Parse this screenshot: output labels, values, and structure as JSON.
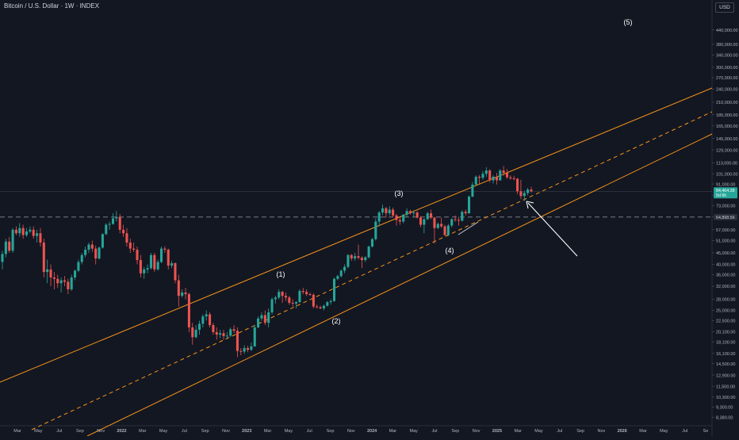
{
  "header": {
    "title": "Bitcoin / U.S. Dollar · 1W · INDEX",
    "currency": "USD"
  },
  "colors": {
    "background": "#131722",
    "up": "#26a69a",
    "down": "#ef5350",
    "channel": "#f7931a",
    "axis_text": "#b2b5be",
    "annotation": "#ffffff"
  },
  "chart_data": {
    "type": "candlestick",
    "title": "Bitcoin / U.S. Dollar · 1W · INDEX",
    "y_scale": "log",
    "ylim": [
      8000,
      560000
    ],
    "grid": false,
    "legend": "none",
    "y_ticks": [
      "440,000.00",
      "380,000.00",
      "340,000.00",
      "300,000.00",
      "270,000.00",
      "240,000.00",
      "210,000.00",
      "185,000.00",
      "165,000.00",
      "145,000.00",
      "129,000.00",
      "113,000.00",
      "101,000.00",
      "91,000.00",
      "81,000.00",
      "73,000.00",
      "65,000.00",
      "57,000.00",
      "51,000.00",
      "45,000.00",
      "40,000.00",
      "36,000.00",
      "32,000.00",
      "28,000.00",
      "25,000.00",
      "22,500.00",
      "20,100.00",
      "18,100.00",
      "16,100.00",
      "14,500.00",
      "12,900.00",
      "11,500.00",
      "10,300.00",
      "9,300.00",
      "8,380.00"
    ],
    "x_ticks": [
      "Mar",
      "May",
      "Jul",
      "Sep",
      "Nov",
      "2022",
      "Mar",
      "May",
      "Jul",
      "Sep",
      "Nov",
      "2023",
      "Mar",
      "May",
      "Jul",
      "Sep",
      "Nov",
      "2024",
      "Mar",
      "May",
      "Jul",
      "Sep",
      "Nov",
      "2025",
      "Mar",
      "May",
      "Jul",
      "Sep",
      "Nov",
      "2026",
      "Mar",
      "May",
      "Jul",
      "Se"
    ],
    "price_labels": {
      "last_price": "84,464.38",
      "countdown": "5d 6h",
      "horizontal_level": "64,898.56"
    },
    "wave_labels": [
      "(1)",
      "(2)",
      "(3)",
      "(4)",
      "(5)"
    ],
    "candles": [
      {
        "o": 41000,
        "h": 46000,
        "l": 38000,
        "c": 44500
      },
      {
        "o": 44500,
        "h": 52000,
        "l": 43000,
        "c": 50500
      },
      {
        "o": 50500,
        "h": 53000,
        "l": 45000,
        "c": 46000
      },
      {
        "o": 46000,
        "h": 58000,
        "l": 45000,
        "c": 57000
      },
      {
        "o": 57000,
        "h": 59000,
        "l": 54000,
        "c": 55000
      },
      {
        "o": 55000,
        "h": 61000,
        "l": 53000,
        "c": 58000
      },
      {
        "o": 58000,
        "h": 60000,
        "l": 52000,
        "c": 54000
      },
      {
        "o": 54000,
        "h": 58000,
        "l": 53000,
        "c": 56000
      },
      {
        "o": 56000,
        "h": 59000,
        "l": 55000,
        "c": 57000
      },
      {
        "o": 57000,
        "h": 59000,
        "l": 52000,
        "c": 53500
      },
      {
        "o": 53500,
        "h": 57000,
        "l": 50000,
        "c": 55000
      },
      {
        "o": 55000,
        "h": 58000,
        "l": 48000,
        "c": 50000
      },
      {
        "o": 50000,
        "h": 52000,
        "l": 35000,
        "c": 37000
      },
      {
        "o": 37000,
        "h": 42000,
        "l": 33000,
        "c": 38000
      },
      {
        "o": 38000,
        "h": 40000,
        "l": 32000,
        "c": 35000
      },
      {
        "o": 35000,
        "h": 37000,
        "l": 31000,
        "c": 34500
      },
      {
        "o": 34500,
        "h": 36000,
        "l": 31500,
        "c": 33000
      },
      {
        "o": 33000,
        "h": 35000,
        "l": 30000,
        "c": 34000
      },
      {
        "o": 34000,
        "h": 35500,
        "l": 32000,
        "c": 33500
      },
      {
        "o": 33500,
        "h": 34500,
        "l": 29500,
        "c": 31000
      },
      {
        "o": 31000,
        "h": 36000,
        "l": 30500,
        "c": 35000
      },
      {
        "o": 35000,
        "h": 38000,
        "l": 34000,
        "c": 37500
      },
      {
        "o": 37500,
        "h": 42000,
        "l": 37000,
        "c": 41000
      },
      {
        "o": 41000,
        "h": 45000,
        "l": 40000,
        "c": 44000
      },
      {
        "o": 44000,
        "h": 48000,
        "l": 43000,
        "c": 46500
      },
      {
        "o": 46500,
        "h": 50000,
        "l": 45000,
        "c": 49000
      },
      {
        "o": 49000,
        "h": 51000,
        "l": 45500,
        "c": 47000
      },
      {
        "o": 47000,
        "h": 48500,
        "l": 40000,
        "c": 42500
      },
      {
        "o": 42500,
        "h": 48000,
        "l": 42000,
        "c": 47500
      },
      {
        "o": 47500,
        "h": 55000,
        "l": 47000,
        "c": 54500
      },
      {
        "o": 54500,
        "h": 61000,
        "l": 54000,
        "c": 60000
      },
      {
        "o": 60000,
        "h": 62000,
        "l": 57000,
        "c": 60500
      },
      {
        "o": 60500,
        "h": 67500,
        "l": 60000,
        "c": 64000
      },
      {
        "o": 64000,
        "h": 69000,
        "l": 62000,
        "c": 65000
      },
      {
        "o": 65000,
        "h": 67000,
        "l": 55000,
        "c": 57000
      },
      {
        "o": 57000,
        "h": 60000,
        "l": 53000,
        "c": 55000
      },
      {
        "o": 55000,
        "h": 58000,
        "l": 48000,
        "c": 50000
      },
      {
        "o": 50000,
        "h": 52000,
        "l": 45000,
        "c": 47000
      },
      {
        "o": 47000,
        "h": 50000,
        "l": 45500,
        "c": 46500
      },
      {
        "o": 46500,
        "h": 48000,
        "l": 40000,
        "c": 41800
      },
      {
        "o": 41800,
        "h": 44000,
        "l": 35000,
        "c": 36500
      },
      {
        "o": 36500,
        "h": 39000,
        "l": 34500,
        "c": 38000
      },
      {
        "o": 38000,
        "h": 40000,
        "l": 36500,
        "c": 38500
      },
      {
        "o": 38500,
        "h": 45000,
        "l": 38000,
        "c": 44000
      },
      {
        "o": 44000,
        "h": 45000,
        "l": 37000,
        "c": 38000
      },
      {
        "o": 38000,
        "h": 42000,
        "l": 37500,
        "c": 41000
      },
      {
        "o": 41000,
        "h": 48000,
        "l": 40500,
        "c": 47000
      },
      {
        "o": 47000,
        "h": 48200,
        "l": 45000,
        "c": 46500
      },
      {
        "o": 46500,
        "h": 47000,
        "l": 38000,
        "c": 39500
      },
      {
        "o": 39500,
        "h": 41500,
        "l": 38500,
        "c": 40500
      },
      {
        "o": 40500,
        "h": 40800,
        "l": 33000,
        "c": 34000
      },
      {
        "o": 34000,
        "h": 36000,
        "l": 26000,
        "c": 29000
      },
      {
        "o": 29000,
        "h": 31000,
        "l": 28500,
        "c": 30000
      },
      {
        "o": 30000,
        "h": 31500,
        "l": 28000,
        "c": 29500
      },
      {
        "o": 29500,
        "h": 30000,
        "l": 20000,
        "c": 21000
      },
      {
        "o": 21000,
        "h": 22000,
        "l": 17600,
        "c": 19000
      },
      {
        "o": 19000,
        "h": 21500,
        "l": 18800,
        "c": 20500
      },
      {
        "o": 20500,
        "h": 22500,
        "l": 19500,
        "c": 21800
      },
      {
        "o": 21800,
        "h": 24000,
        "l": 21000,
        "c": 23500
      },
      {
        "o": 23500,
        "h": 25000,
        "l": 22500,
        "c": 24000
      },
      {
        "o": 24000,
        "h": 24500,
        "l": 21000,
        "c": 21500
      },
      {
        "o": 21500,
        "h": 22000,
        "l": 19500,
        "c": 20000
      },
      {
        "o": 20000,
        "h": 21000,
        "l": 18500,
        "c": 19500
      },
      {
        "o": 19500,
        "h": 20500,
        "l": 18800,
        "c": 19800
      },
      {
        "o": 19800,
        "h": 20500,
        "l": 18500,
        "c": 19200
      },
      {
        "o": 19200,
        "h": 20000,
        "l": 18600,
        "c": 19300
      },
      {
        "o": 19300,
        "h": 21000,
        "l": 19000,
        "c": 20600
      },
      {
        "o": 20600,
        "h": 21500,
        "l": 19800,
        "c": 20300
      },
      {
        "o": 20300,
        "h": 21000,
        "l": 15500,
        "c": 16500
      },
      {
        "o": 16500,
        "h": 17000,
        "l": 15800,
        "c": 16400
      },
      {
        "o": 16400,
        "h": 17500,
        "l": 16000,
        "c": 17000
      },
      {
        "o": 17000,
        "h": 17400,
        "l": 16300,
        "c": 16700
      },
      {
        "o": 16700,
        "h": 18000,
        "l": 16500,
        "c": 17300
      },
      {
        "o": 17300,
        "h": 21500,
        "l": 17200,
        "c": 21000
      },
      {
        "o": 21000,
        "h": 23500,
        "l": 20800,
        "c": 23000
      },
      {
        "o": 23000,
        "h": 24500,
        "l": 22500,
        "c": 23800
      },
      {
        "o": 23800,
        "h": 25000,
        "l": 21500,
        "c": 22000
      },
      {
        "o": 22000,
        "h": 25500,
        "l": 21000,
        "c": 24500
      },
      {
        "o": 24500,
        "h": 28500,
        "l": 24000,
        "c": 28000
      },
      {
        "o": 28000,
        "h": 29000,
        "l": 26800,
        "c": 28500
      },
      {
        "o": 28500,
        "h": 31000,
        "l": 28000,
        "c": 30200
      },
      {
        "o": 30200,
        "h": 30500,
        "l": 27000,
        "c": 29000
      },
      {
        "o": 29000,
        "h": 30000,
        "l": 27500,
        "c": 28500
      },
      {
        "o": 28500,
        "h": 29000,
        "l": 26500,
        "c": 27000
      },
      {
        "o": 27000,
        "h": 28000,
        "l": 26000,
        "c": 26800
      },
      {
        "o": 26800,
        "h": 27500,
        "l": 25500,
        "c": 27200
      },
      {
        "o": 27200,
        "h": 31000,
        "l": 27000,
        "c": 30500
      },
      {
        "o": 30500,
        "h": 31500,
        "l": 29500,
        "c": 30200
      },
      {
        "o": 30200,
        "h": 31000,
        "l": 29000,
        "c": 29500
      },
      {
        "o": 29500,
        "h": 30000,
        "l": 29000,
        "c": 29300
      },
      {
        "o": 29300,
        "h": 29800,
        "l": 25500,
        "c": 26000
      },
      {
        "o": 26000,
        "h": 26500,
        "l": 25500,
        "c": 25800
      },
      {
        "o": 25800,
        "h": 26200,
        "l": 25300,
        "c": 25500
      },
      {
        "o": 25500,
        "h": 26500,
        "l": 25000,
        "c": 26200
      },
      {
        "o": 26200,
        "h": 27500,
        "l": 26000,
        "c": 27200
      },
      {
        "o": 27200,
        "h": 28000,
        "l": 26500,
        "c": 27500
      },
      {
        "o": 27500,
        "h": 35000,
        "l": 27300,
        "c": 34500
      },
      {
        "o": 34500,
        "h": 36000,
        "l": 34000,
        "c": 35500
      },
      {
        "o": 35500,
        "h": 38000,
        "l": 35000,
        "c": 37500
      },
      {
        "o": 37500,
        "h": 40000,
        "l": 36500,
        "c": 39000
      },
      {
        "o": 39000,
        "h": 44500,
        "l": 38500,
        "c": 44000
      },
      {
        "o": 44000,
        "h": 44500,
        "l": 41500,
        "c": 42500
      },
      {
        "o": 42500,
        "h": 45000,
        "l": 41500,
        "c": 43500
      },
      {
        "o": 43500,
        "h": 49000,
        "l": 42000,
        "c": 42800
      },
      {
        "o": 42800,
        "h": 43500,
        "l": 38500,
        "c": 41800
      },
      {
        "o": 41800,
        "h": 43500,
        "l": 41000,
        "c": 43000
      },
      {
        "o": 43000,
        "h": 48500,
        "l": 42500,
        "c": 48000
      },
      {
        "o": 48000,
        "h": 52500,
        "l": 47500,
        "c": 51800
      },
      {
        "o": 51800,
        "h": 64000,
        "l": 51000,
        "c": 62000
      },
      {
        "o": 62000,
        "h": 69000,
        "l": 59000,
        "c": 68000
      },
      {
        "o": 68000,
        "h": 73800,
        "l": 66000,
        "c": 71000
      },
      {
        "o": 71000,
        "h": 72000,
        "l": 64500,
        "c": 67500
      },
      {
        "o": 67500,
        "h": 72500,
        "l": 66000,
        "c": 70000
      },
      {
        "o": 70000,
        "h": 71500,
        "l": 65000,
        "c": 66000
      },
      {
        "o": 66000,
        "h": 67000,
        "l": 59500,
        "c": 63000
      },
      {
        "o": 63000,
        "h": 64500,
        "l": 60000,
        "c": 62000
      },
      {
        "o": 62000,
        "h": 67000,
        "l": 61000,
        "c": 66500
      },
      {
        "o": 66500,
        "h": 71000,
        "l": 65000,
        "c": 69000
      },
      {
        "o": 69000,
        "h": 70000,
        "l": 66500,
        "c": 67500
      },
      {
        "o": 67500,
        "h": 69500,
        "l": 65000,
        "c": 68000
      },
      {
        "o": 68000,
        "h": 69000,
        "l": 64000,
        "c": 64500
      },
      {
        "o": 64500,
        "h": 65500,
        "l": 58500,
        "c": 60000
      },
      {
        "o": 60000,
        "h": 64000,
        "l": 55000,
        "c": 63500
      },
      {
        "o": 63500,
        "h": 68500,
        "l": 63000,
        "c": 67500
      },
      {
        "o": 67500,
        "h": 70000,
        "l": 63500,
        "c": 64500
      },
      {
        "o": 64500,
        "h": 65000,
        "l": 49500,
        "c": 58000
      },
      {
        "o": 58000,
        "h": 61500,
        "l": 57500,
        "c": 60500
      },
      {
        "o": 60500,
        "h": 64500,
        "l": 58000,
        "c": 59000
      },
      {
        "o": 59000,
        "h": 60000,
        "l": 53500,
        "c": 54000
      },
      {
        "o": 54000,
        "h": 60500,
        "l": 53500,
        "c": 59500
      },
      {
        "o": 59500,
        "h": 64000,
        "l": 58500,
        "c": 63500
      },
      {
        "o": 63500,
        "h": 66000,
        "l": 62000,
        "c": 63000
      },
      {
        "o": 63000,
        "h": 65000,
        "l": 59500,
        "c": 62500
      },
      {
        "o": 62500,
        "h": 69500,
        "l": 62000,
        "c": 68500
      },
      {
        "o": 68500,
        "h": 70000,
        "l": 66000,
        "c": 67500
      },
      {
        "o": 67500,
        "h": 81000,
        "l": 67000,
        "c": 80000
      },
      {
        "o": 80000,
        "h": 93000,
        "l": 79500,
        "c": 90500
      },
      {
        "o": 90500,
        "h": 99500,
        "l": 89000,
        "c": 98000
      },
      {
        "o": 98000,
        "h": 99800,
        "l": 91000,
        "c": 97000
      },
      {
        "o": 97000,
        "h": 104000,
        "l": 95000,
        "c": 101000
      },
      {
        "o": 101000,
        "h": 108000,
        "l": 98000,
        "c": 104500
      },
      {
        "o": 104500,
        "h": 106000,
        "l": 92500,
        "c": 94500
      },
      {
        "o": 94500,
        "h": 99500,
        "l": 91500,
        "c": 98000
      },
      {
        "o": 98000,
        "h": 102000,
        "l": 90500,
        "c": 94500
      },
      {
        "o": 94500,
        "h": 106000,
        "l": 94000,
        "c": 104500
      },
      {
        "o": 104500,
        "h": 109500,
        "l": 99000,
        "c": 102000
      },
      {
        "o": 102000,
        "h": 106000,
        "l": 96000,
        "c": 97500
      },
      {
        "o": 97500,
        "h": 99500,
        "l": 95000,
        "c": 96500
      },
      {
        "o": 96500,
        "h": 99000,
        "l": 94500,
        "c": 96000
      },
      {
        "o": 96000,
        "h": 97000,
        "l": 82000,
        "c": 84500
      },
      {
        "o": 84500,
        "h": 95000,
        "l": 78000,
        "c": 80500
      },
      {
        "o": 80500,
        "h": 85000,
        "l": 76500,
        "c": 83000
      },
      {
        "o": 83000,
        "h": 87500,
        "l": 81000,
        "c": 86000
      },
      {
        "o": 86000,
        "h": 88500,
        "l": 83500,
        "c": 84464.38
      }
    ]
  },
  "axis_labels": {
    "price": "price-axis"
  }
}
